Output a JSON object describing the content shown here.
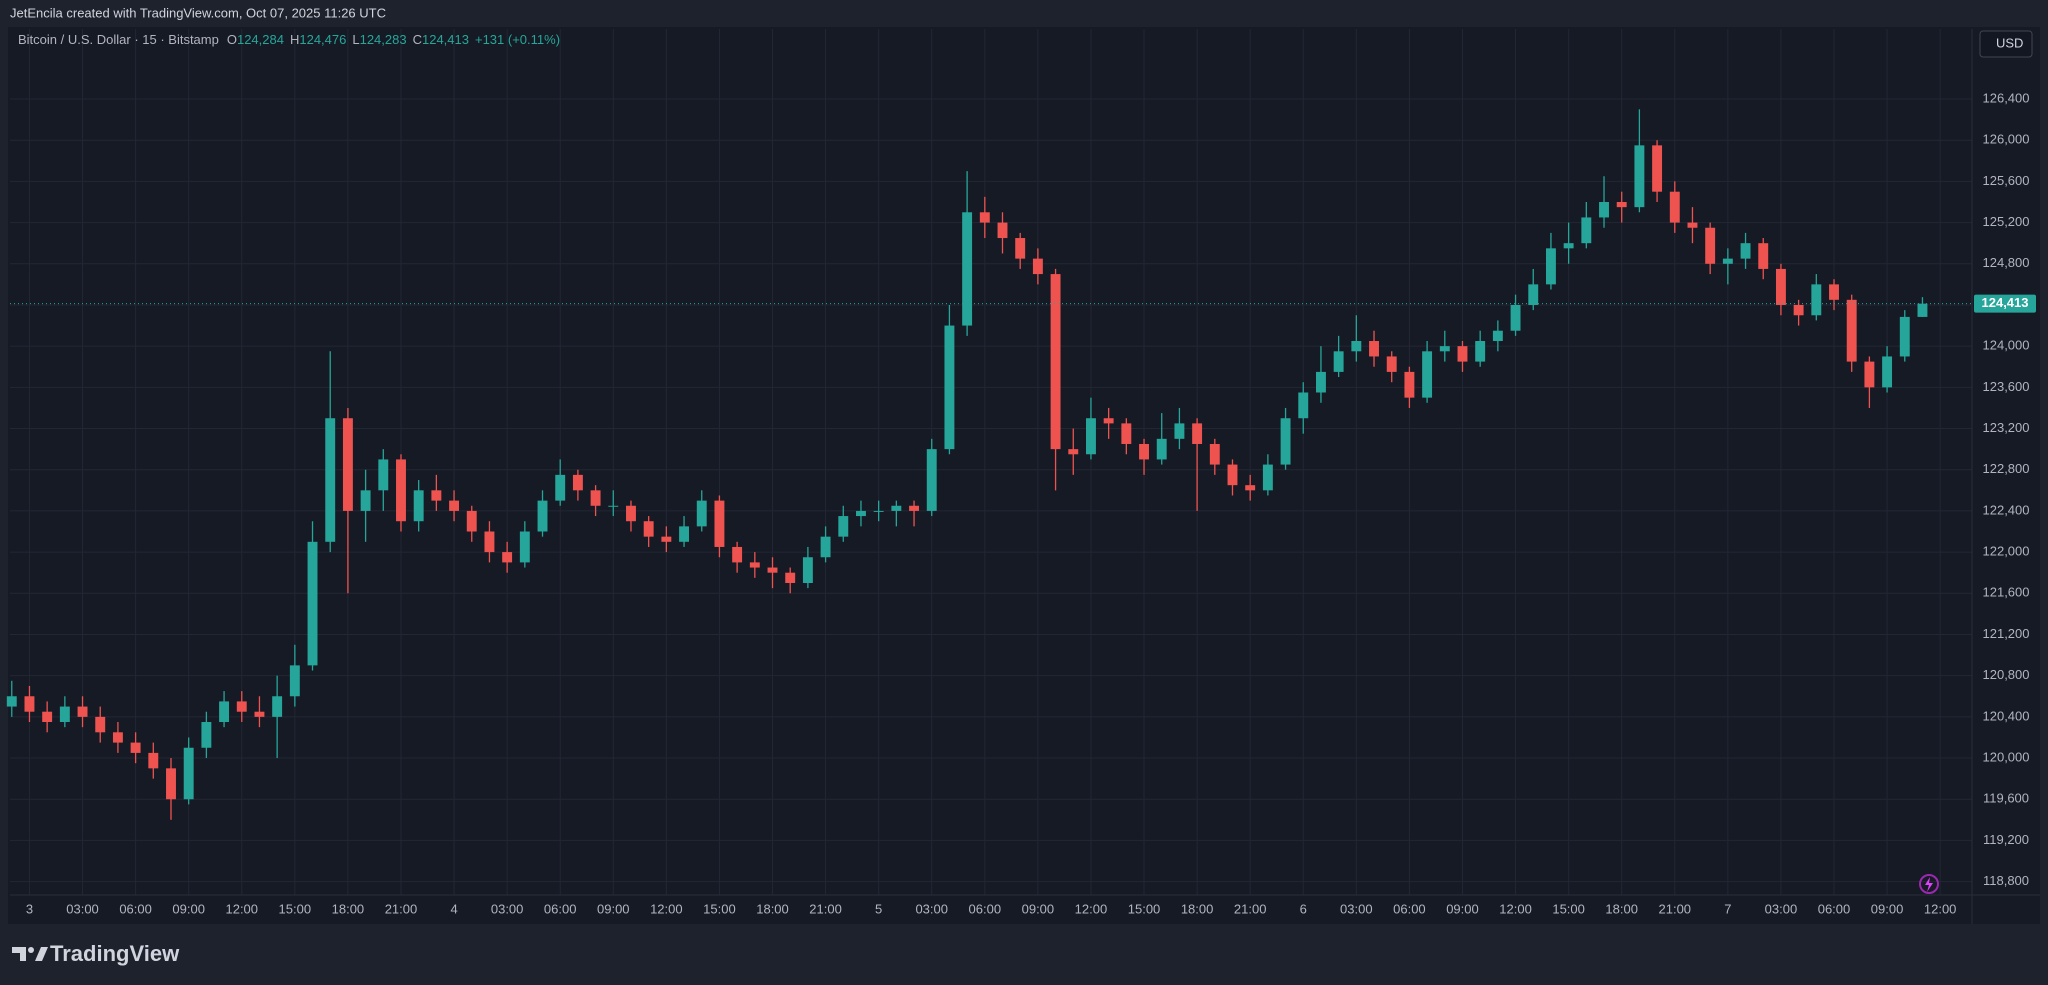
{
  "header": {
    "attribution": "JetEncila created with TradingView.com, Oct 07, 2025 11:26 UTC"
  },
  "footer": {
    "brand": "TradingView"
  },
  "chart_data": {
    "type": "candlestick",
    "title": "Bitcoin / U.S. Dollar · 15 · Bitstamp",
    "ohlc_legend": [
      {
        "key": "O",
        "value": "124,284"
      },
      {
        "key": "H",
        "value": "124,476"
      },
      {
        "key": "L",
        "value": "124,283"
      },
      {
        "key": "C",
        "value": "124,413"
      }
    ],
    "change": "+131 (+0.11%)",
    "axis_unit": "USD",
    "last_price_label": "124,413",
    "up_color": "#26a69a",
    "down_color": "#ef5350",
    "grid": true,
    "xlim": [
      -0.1,
      110.8
    ],
    "xticks": [
      {
        "value": 1,
        "label": "3"
      },
      {
        "value": 4,
        "label": "03:00"
      },
      {
        "value": 7,
        "label": "06:00"
      },
      {
        "value": 10,
        "label": "09:00"
      },
      {
        "value": 13,
        "label": "12:00"
      },
      {
        "value": 16,
        "label": "15:00"
      },
      {
        "value": 19,
        "label": "18:00"
      },
      {
        "value": 22,
        "label": "21:00"
      },
      {
        "value": 25,
        "label": "4"
      },
      {
        "value": 28,
        "label": "03:00"
      },
      {
        "value": 31,
        "label": "06:00"
      },
      {
        "value": 34,
        "label": "09:00"
      },
      {
        "value": 37,
        "label": "12:00"
      },
      {
        "value": 40,
        "label": "15:00"
      },
      {
        "value": 43,
        "label": "18:00"
      },
      {
        "value": 46,
        "label": "21:00"
      },
      {
        "value": 49,
        "label": "5"
      },
      {
        "value": 52,
        "label": "03:00"
      },
      {
        "value": 55,
        "label": "06:00"
      },
      {
        "value": 58,
        "label": "09:00"
      },
      {
        "value": 61,
        "label": "12:00"
      },
      {
        "value": 64,
        "label": "15:00"
      },
      {
        "value": 67,
        "label": "18:00"
      },
      {
        "value": 70,
        "label": "21:00"
      },
      {
        "value": 73,
        "label": "6"
      },
      {
        "value": 76,
        "label": "03:00"
      },
      {
        "value": 79,
        "label": "06:00"
      },
      {
        "value": 82,
        "label": "09:00"
      },
      {
        "value": 85,
        "label": "12:00"
      },
      {
        "value": 88,
        "label": "15:00"
      },
      {
        "value": 91,
        "label": "18:00"
      },
      {
        "value": 94,
        "label": "21:00"
      },
      {
        "value": 97,
        "label": "7"
      },
      {
        "value": 100,
        "label": "03:00"
      },
      {
        "value": 103,
        "label": "06:00"
      },
      {
        "value": 106,
        "label": "09:00"
      },
      {
        "value": 109,
        "label": "12:00"
      }
    ],
    "ylim": [
      118670,
      127080
    ],
    "yticks": [
      {
        "value": 118800,
        "label": "118,800"
      },
      {
        "value": 119200,
        "label": "119,200"
      },
      {
        "value": 119600,
        "label": "119,600"
      },
      {
        "value": 120000,
        "label": "120,000"
      },
      {
        "value": 120400,
        "label": "120,400"
      },
      {
        "value": 120800,
        "label": "120,800"
      },
      {
        "value": 121200,
        "label": "121,200"
      },
      {
        "value": 121600,
        "label": "121,600"
      },
      {
        "value": 122000,
        "label": "122,000"
      },
      {
        "value": 122400,
        "label": "122,400"
      },
      {
        "value": 122800,
        "label": "122,800"
      },
      {
        "value": 123200,
        "label": "123,200"
      },
      {
        "value": 123600,
        "label": "123,600"
      },
      {
        "value": 124000,
        "label": "124,000"
      },
      {
        "value": 124400,
        "label": "124,400"
      },
      {
        "value": 124800,
        "label": "124,800"
      },
      {
        "value": 125200,
        "label": "125,200"
      },
      {
        "value": 125600,
        "label": "125,600"
      },
      {
        "value": 126000,
        "label": "126,000"
      },
      {
        "value": 126400,
        "label": "126,400"
      }
    ],
    "open": [
      120500,
      120600,
      120450,
      120350,
      120500,
      120400,
      120250,
      120150,
      120050,
      119900,
      119600,
      120100,
      120350,
      120550,
      120450,
      120400,
      120600,
      120900,
      122100,
      123300,
      122400,
      122600,
      122900,
      122300,
      122600,
      122500,
      122400,
      122200,
      122000,
      121900,
      122200,
      122500,
      122750,
      122600,
      122450,
      122450,
      122300,
      122150,
      122100,
      122250,
      122500,
      122050,
      121900,
      121850,
      121800,
      121700,
      121950,
      122150,
      122350,
      122400,
      122400,
      122450,
      122400,
      123000,
      124200,
      125300,
      125200,
      125050,
      124850,
      124700,
      123000,
      122950,
      123300,
      123250,
      123050,
      122900,
      123100,
      123250,
      123050,
      122850,
      122650,
      122600,
      122850,
      123300,
      123550,
      123750,
      123950,
      124050,
      123900,
      123750,
      123500,
      123950,
      124000,
      123850,
      124050,
      124150,
      124400,
      124600,
      124950,
      125000,
      125250,
      125400,
      125350,
      125950,
      125500,
      125200,
      125150,
      124800,
      124850,
      125000,
      124750,
      124400,
      124300,
      124600,
      124450,
      123850,
      123600,
      123900,
      124284
    ],
    "high": [
      120750,
      120700,
      120550,
      120600,
      120600,
      120500,
      120350,
      120250,
      120150,
      120000,
      120200,
      120450,
      120650,
      120650,
      120600,
      120800,
      121100,
      122300,
      123950,
      123400,
      122800,
      123000,
      122950,
      122700,
      122750,
      122600,
      122450,
      122300,
      122100,
      122300,
      122600,
      122900,
      122800,
      122650,
      122600,
      122500,
      122350,
      122250,
      122350,
      122600,
      122550,
      122100,
      122000,
      121950,
      121850,
      122050,
      122250,
      122450,
      122500,
      122500,
      122500,
      122500,
      123100,
      124400,
      125700,
      125450,
      125300,
      125100,
      124950,
      124750,
      123200,
      123500,
      123400,
      123300,
      123100,
      123350,
      123400,
      123300,
      123100,
      122900,
      122750,
      122950,
      123400,
      123650,
      124000,
      124100,
      124300,
      124150,
      123950,
      123800,
      124050,
      124150,
      124050,
      124150,
      124250,
      124500,
      124750,
      125100,
      125200,
      125400,
      125650,
      125500,
      126300,
      126000,
      125600,
      125350,
      125200,
      124950,
      125100,
      125050,
      124800,
      124450,
      124700,
      124650,
      124500,
      123900,
      124000,
      124350,
      124476
    ],
    "low": [
      120400,
      120350,
      120250,
      120300,
      120300,
      120150,
      120050,
      119950,
      119800,
      119400,
      119550,
      120000,
      120300,
      120350,
      120300,
      120000,
      120500,
      120850,
      122000,
      121600,
      122100,
      122400,
      122200,
      122200,
      122400,
      122300,
      122100,
      121900,
      121800,
      121850,
      122150,
      122450,
      122500,
      122350,
      122350,
      122200,
      122050,
      122000,
      122050,
      122200,
      121950,
      121800,
      121750,
      121650,
      121600,
      121650,
      121900,
      122100,
      122250,
      122300,
      122250,
      122250,
      122350,
      122950,
      124100,
      125050,
      124900,
      124750,
      124600,
      122600,
      122750,
      122900,
      123100,
      122950,
      122750,
      122850,
      123000,
      122400,
      122750,
      122550,
      122500,
      122550,
      122800,
      123150,
      123450,
      123700,
      123850,
      123800,
      123650,
      123400,
      123450,
      123850,
      123750,
      123800,
      123950,
      124100,
      124350,
      124550,
      124800,
      124950,
      125150,
      125200,
      125300,
      125400,
      125100,
      125000,
      124700,
      124600,
      124750,
      124650,
      124300,
      124200,
      124250,
      124350,
      123750,
      123400,
      123550,
      123850,
      124283
    ],
    "close": [
      120600,
      120450,
      120350,
      120500,
      120400,
      120250,
      120150,
      120050,
      119900,
      119600,
      120100,
      120350,
      120550,
      120450,
      120400,
      120600,
      120900,
      122100,
      123300,
      122400,
      122600,
      122900,
      122300,
      122600,
      122500,
      122400,
      122200,
      122000,
      121900,
      122200,
      122500,
      122750,
      122600,
      122450,
      122450,
      122300,
      122150,
      122100,
      122250,
      122500,
      122050,
      121900,
      121850,
      121800,
      121700,
      121950,
      122150,
      122350,
      122400,
      122400,
      122450,
      122400,
      123000,
      124200,
      125300,
      125200,
      125050,
      124850,
      124700,
      123000,
      122950,
      123300,
      123250,
      123050,
      122900,
      123100,
      123250,
      123050,
      122850,
      122650,
      122600,
      122850,
      123300,
      123550,
      123750,
      123950,
      124050,
      123900,
      123750,
      123500,
      123950,
      124000,
      123850,
      124050,
      124150,
      124400,
      124600,
      124950,
      125000,
      125250,
      125400,
      125350,
      125950,
      125500,
      125200,
      125150,
      124800,
      124850,
      125000,
      124750,
      124400,
      124300,
      124600,
      124450,
      123850,
      123600,
      123900,
      124284,
      124413
    ]
  }
}
